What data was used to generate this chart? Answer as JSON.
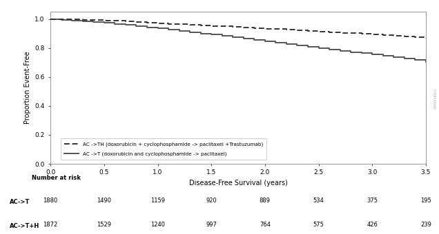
{
  "xlabel": "Disease-Free Survival (years)",
  "ylabel": "Proportion Event-Free",
  "xlim": [
    0,
    3.5
  ],
  "ylim": [
    0.0,
    1.05
  ],
  "yticks": [
    0.0,
    0.2,
    0.4,
    0.6,
    0.8,
    1.0
  ],
  "xticks": [
    0.0,
    0.5,
    1.0,
    1.5,
    2.0,
    2.5,
    3.0,
    3.5
  ],
  "act_x": [
    0.0,
    0.1,
    0.2,
    0.3,
    0.4,
    0.5,
    0.6,
    0.7,
    0.8,
    0.9,
    1.0,
    1.1,
    1.2,
    1.3,
    1.4,
    1.5,
    1.6,
    1.7,
    1.8,
    1.9,
    2.0,
    2.1,
    2.2,
    2.3,
    2.4,
    2.5,
    2.6,
    2.7,
    2.8,
    2.9,
    3.0,
    3.1,
    3.2,
    3.3,
    3.4,
    3.5
  ],
  "act_y": [
    1.0,
    0.995,
    0.99,
    0.985,
    0.978,
    0.972,
    0.966,
    0.958,
    0.95,
    0.943,
    0.935,
    0.926,
    0.917,
    0.908,
    0.9,
    0.891,
    0.882,
    0.873,
    0.864,
    0.855,
    0.845,
    0.836,
    0.827,
    0.818,
    0.808,
    0.8,
    0.79,
    0.78,
    0.772,
    0.763,
    0.754,
    0.745,
    0.736,
    0.728,
    0.718,
    0.705
  ],
  "acth_x": [
    0.0,
    0.1,
    0.2,
    0.3,
    0.4,
    0.5,
    0.6,
    0.7,
    0.8,
    0.9,
    1.0,
    1.1,
    1.2,
    1.3,
    1.4,
    1.5,
    1.6,
    1.7,
    1.8,
    1.9,
    2.0,
    2.1,
    2.2,
    2.3,
    2.4,
    2.5,
    2.6,
    2.7,
    2.8,
    2.9,
    3.0,
    3.1,
    3.2,
    3.3,
    3.4,
    3.5
  ],
  "acth_y": [
    1.0,
    0.998,
    0.996,
    0.994,
    0.992,
    0.99,
    0.986,
    0.982,
    0.978,
    0.975,
    0.97,
    0.966,
    0.963,
    0.959,
    0.955,
    0.952,
    0.948,
    0.944,
    0.94,
    0.937,
    0.933,
    0.929,
    0.925,
    0.921,
    0.917,
    0.913,
    0.909,
    0.905,
    0.901,
    0.897,
    0.893,
    0.889,
    0.884,
    0.88,
    0.872,
    0.865
  ],
  "act_color": "#555555",
  "acth_color": "#333333",
  "legend_act_label": "AC ->T (doxorubicin and cyclophosphamide -> paclitaxel)",
  "legend_acth_label": "AC ->TH (doxorubicin + cyclophosphamide -> paclitaxel +Trastuzumab)",
  "risk_label": "Number at risk",
  "risk_act_label": "AC->T",
  "risk_acth_label": "AC->T+H",
  "risk_x": [
    0.0,
    0.5,
    1.0,
    1.5,
    2.0,
    2.5,
    3.0,
    3.5
  ],
  "risk_act": [
    1880,
    1490,
    1159,
    920,
    889,
    534,
    375,
    195
  ],
  "risk_acth": [
    1872,
    1529,
    1240,
    997,
    764,
    575,
    426,
    239
  ],
  "bg_color": "#ffffff",
  "watermark": "GHI01185v1"
}
